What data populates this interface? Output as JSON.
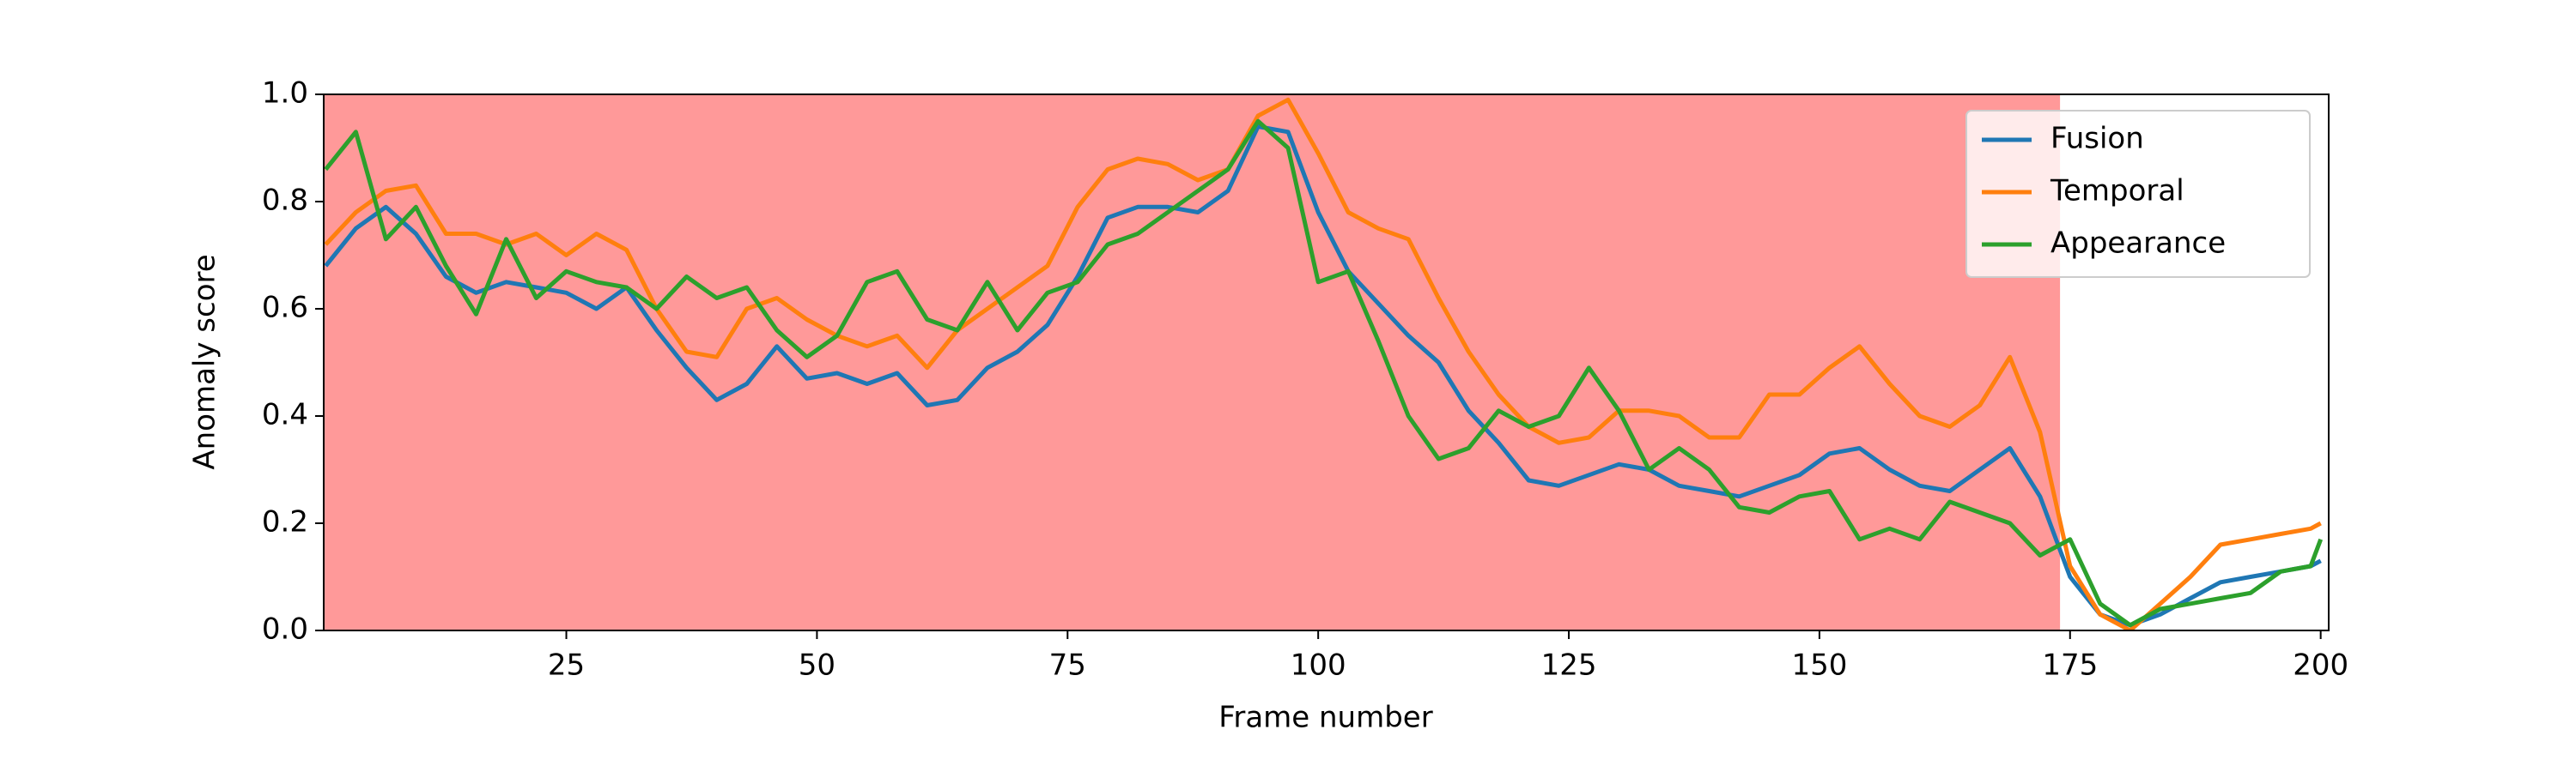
{
  "chart_data": {
    "type": "line",
    "x_label": "Frame number",
    "y_label": "Anomaly score",
    "x": [
      1,
      4,
      7,
      10,
      13,
      16,
      19,
      22,
      25,
      28,
      31,
      34,
      37,
      40,
      43,
      46,
      49,
      52,
      55,
      58,
      61,
      64,
      67,
      70,
      73,
      76,
      79,
      82,
      85,
      88,
      91,
      94,
      97,
      100,
      103,
      106,
      109,
      112,
      115,
      118,
      121,
      124,
      127,
      130,
      133,
      136,
      139,
      142,
      145,
      148,
      151,
      154,
      157,
      160,
      163,
      166,
      169,
      172,
      175,
      178,
      181,
      184,
      187,
      190,
      193,
      196,
      199,
      200
    ],
    "series": [
      {
        "name": "Fusion",
        "color": "#1f77b4",
        "values": [
          0.68,
          0.75,
          0.79,
          0.74,
          0.66,
          0.63,
          0.65,
          0.64,
          0.63,
          0.6,
          0.64,
          0.56,
          0.49,
          0.43,
          0.46,
          0.53,
          0.47,
          0.48,
          0.46,
          0.48,
          0.42,
          0.43,
          0.49,
          0.52,
          0.57,
          0.66,
          0.77,
          0.79,
          0.79,
          0.78,
          0.82,
          0.94,
          0.93,
          0.78,
          0.67,
          0.61,
          0.55,
          0.5,
          0.41,
          0.35,
          0.28,
          0.27,
          0.29,
          0.31,
          0.3,
          0.27,
          0.26,
          0.25,
          0.27,
          0.29,
          0.33,
          0.34,
          0.3,
          0.27,
          0.26,
          0.3,
          0.34,
          0.25,
          0.1,
          0.03,
          0.01,
          0.03,
          0.06,
          0.09,
          0.1,
          0.11,
          0.12,
          0.13
        ]
      },
      {
        "name": "Temporal",
        "color": "#ff7f0e",
        "values": [
          0.72,
          0.78,
          0.82,
          0.83,
          0.74,
          0.74,
          0.72,
          0.74,
          0.7,
          0.74,
          0.71,
          0.6,
          0.52,
          0.51,
          0.6,
          0.62,
          0.58,
          0.55,
          0.53,
          0.55,
          0.49,
          0.56,
          0.6,
          0.64,
          0.68,
          0.79,
          0.86,
          0.88,
          0.87,
          0.84,
          0.86,
          0.96,
          0.99,
          0.89,
          0.78,
          0.75,
          0.73,
          0.62,
          0.52,
          0.44,
          0.38,
          0.35,
          0.36,
          0.41,
          0.41,
          0.4,
          0.36,
          0.36,
          0.44,
          0.44,
          0.49,
          0.53,
          0.46,
          0.4,
          0.38,
          0.42,
          0.51,
          0.37,
          0.12,
          0.03,
          0.0,
          0.05,
          0.1,
          0.16,
          0.17,
          0.18,
          0.19,
          0.2
        ]
      },
      {
        "name": "Appearance",
        "color": "#2ca02c",
        "values": [
          0.86,
          0.93,
          0.73,
          0.79,
          0.68,
          0.59,
          0.73,
          0.62,
          0.67,
          0.65,
          0.64,
          0.6,
          0.66,
          0.62,
          0.64,
          0.56,
          0.51,
          0.55,
          0.65,
          0.67,
          0.58,
          0.56,
          0.65,
          0.56,
          0.63,
          0.65,
          0.72,
          0.74,
          0.78,
          0.82,
          0.86,
          0.95,
          0.9,
          0.65,
          0.67,
          0.54,
          0.4,
          0.32,
          0.34,
          0.41,
          0.38,
          0.4,
          0.49,
          0.41,
          0.3,
          0.34,
          0.3,
          0.23,
          0.22,
          0.25,
          0.26,
          0.17,
          0.19,
          0.17,
          0.24,
          0.22,
          0.2,
          0.14,
          0.17,
          0.05,
          0.01,
          0.04,
          0.05,
          0.06,
          0.07,
          0.11,
          0.12,
          0.17
        ]
      }
    ],
    "highlight": {
      "xrange": [
        0,
        174
      ],
      "color": "#ff9999"
    },
    "xlim": [
      0.8,
      200.8
    ],
    "ylim": [
      0,
      1
    ],
    "xticks": [
      25,
      50,
      75,
      100,
      125,
      150,
      175,
      200
    ],
    "yticks": [
      {
        "value": 0,
        "label": "0.0"
      },
      0.2,
      0.4,
      0.6,
      0.8,
      {
        "value": 1,
        "label": "1.0"
      }
    ],
    "grid": false,
    "legend": "upper right"
  }
}
